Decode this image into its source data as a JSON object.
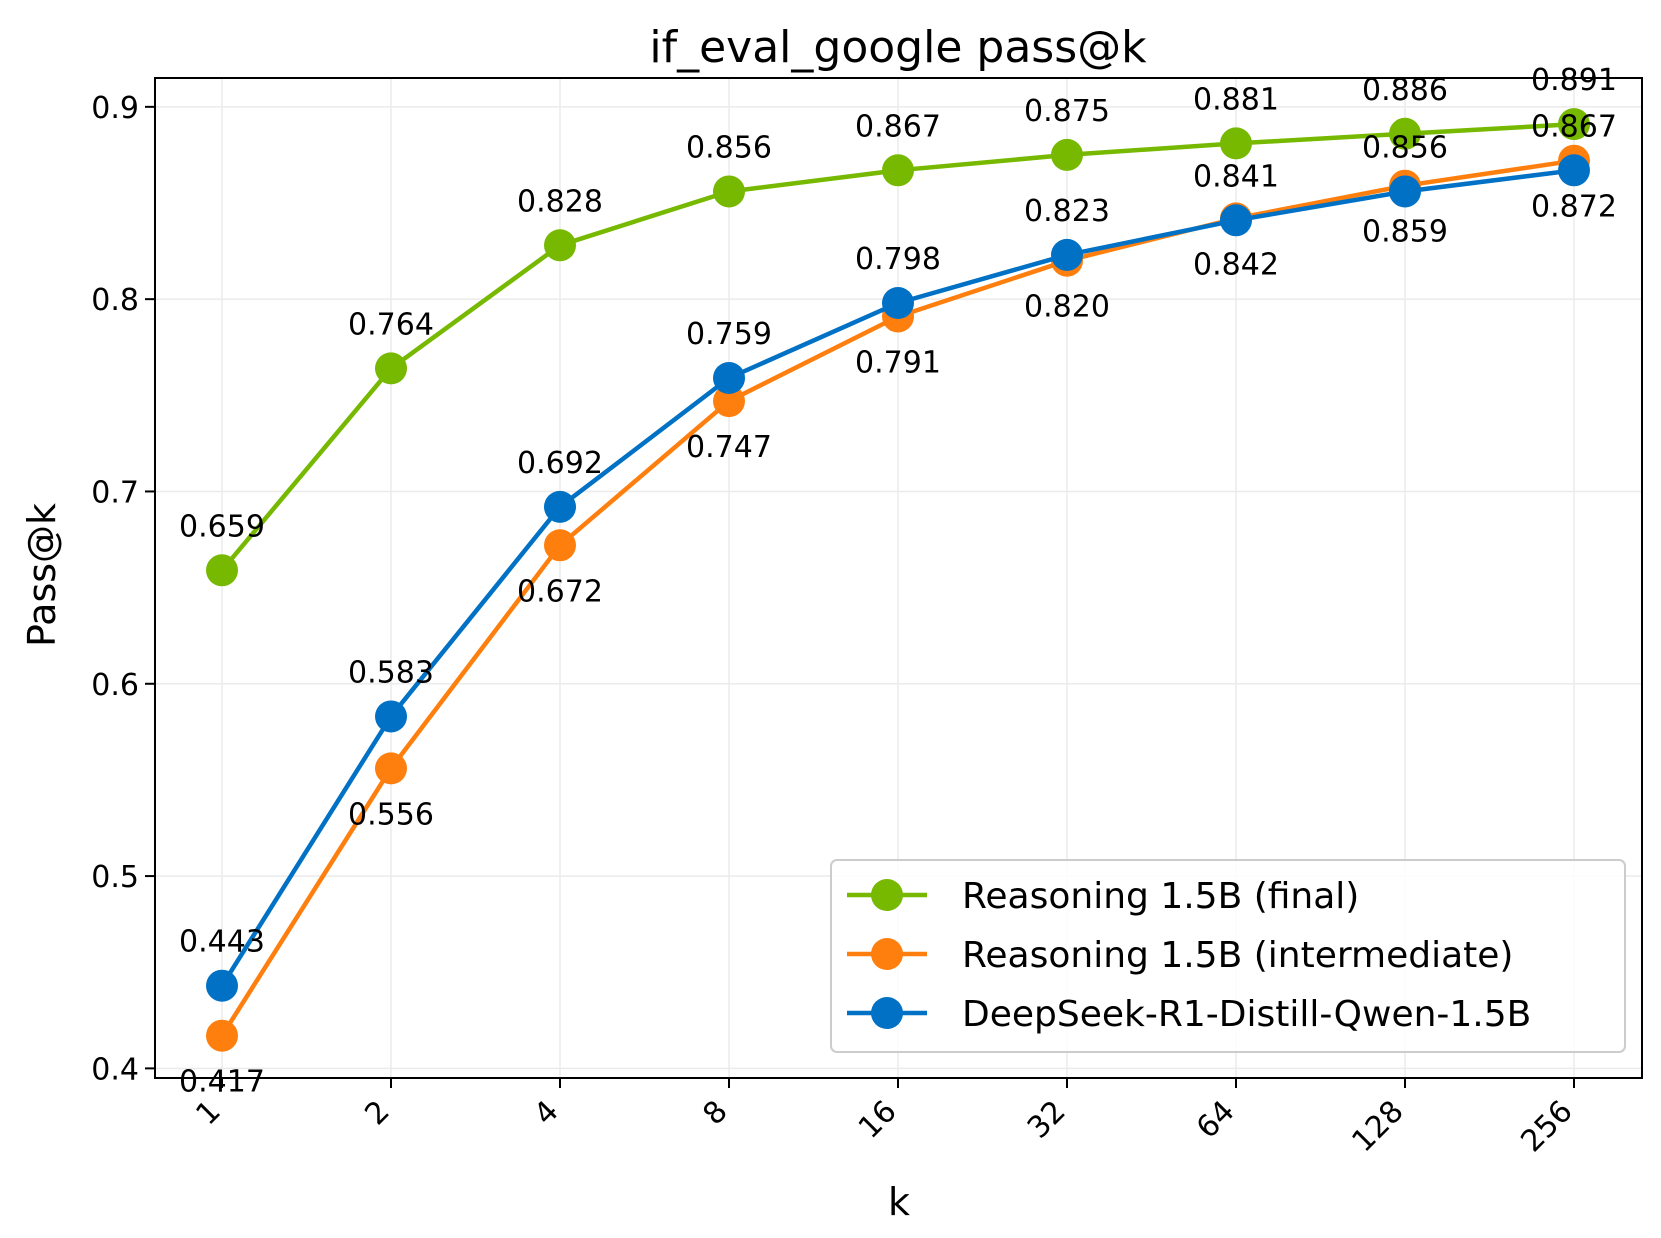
{
  "chart_data": {
    "type": "line",
    "title": "if_eval_google pass@k",
    "xlabel": "k",
    "ylabel": "Pass@k",
    "categories": [
      "1",
      "2",
      "4",
      "8",
      "16",
      "32",
      "64",
      "128",
      "256"
    ],
    "ylim": [
      0.395,
      0.915
    ],
    "yticks": [
      "0.4",
      "0.5",
      "0.6",
      "0.7",
      "0.8",
      "0.9"
    ],
    "grid": true,
    "legend_position": "lower-right",
    "series": [
      {
        "name": "Reasoning 1.5B (final)",
        "color": "#76b900",
        "values": [
          0.659,
          0.764,
          0.828,
          0.856,
          0.867,
          0.875,
          0.881,
          0.886,
          0.891
        ],
        "labels": [
          "0.659",
          "0.764",
          "0.828",
          "0.856",
          "0.867",
          "0.875",
          "0.881",
          "0.886",
          "0.891"
        ],
        "label_side": [
          "above",
          "above",
          "above",
          "above",
          "above",
          "above",
          "above",
          "above",
          "above"
        ]
      },
      {
        "name": "Reasoning 1.5B (intermediate)",
        "color": "#ff7f0e",
        "values": [
          0.417,
          0.556,
          0.672,
          0.747,
          0.791,
          0.82,
          0.842,
          0.859,
          0.872
        ],
        "labels": [
          "0.417",
          "0.556",
          "0.672",
          "0.747",
          "0.791",
          "0.820",
          "0.842",
          "0.859",
          "0.872"
        ],
        "label_side": [
          "below",
          "below",
          "below",
          "below",
          "below",
          "below",
          "below",
          "below",
          "below"
        ]
      },
      {
        "name": "DeepSeek-R1-Distill-Qwen-1.5B",
        "color": "#0071c5",
        "values": [
          0.443,
          0.583,
          0.692,
          0.759,
          0.798,
          0.823,
          0.841,
          0.856,
          0.867
        ],
        "labels": [
          "0.443",
          "0.583",
          "0.692",
          "0.759",
          "0.798",
          "0.823",
          "0.841",
          "0.856",
          "0.867"
        ],
        "label_side": [
          "above",
          "above",
          "above",
          "above",
          "above",
          "above",
          "above",
          "above",
          "above"
        ]
      }
    ]
  }
}
